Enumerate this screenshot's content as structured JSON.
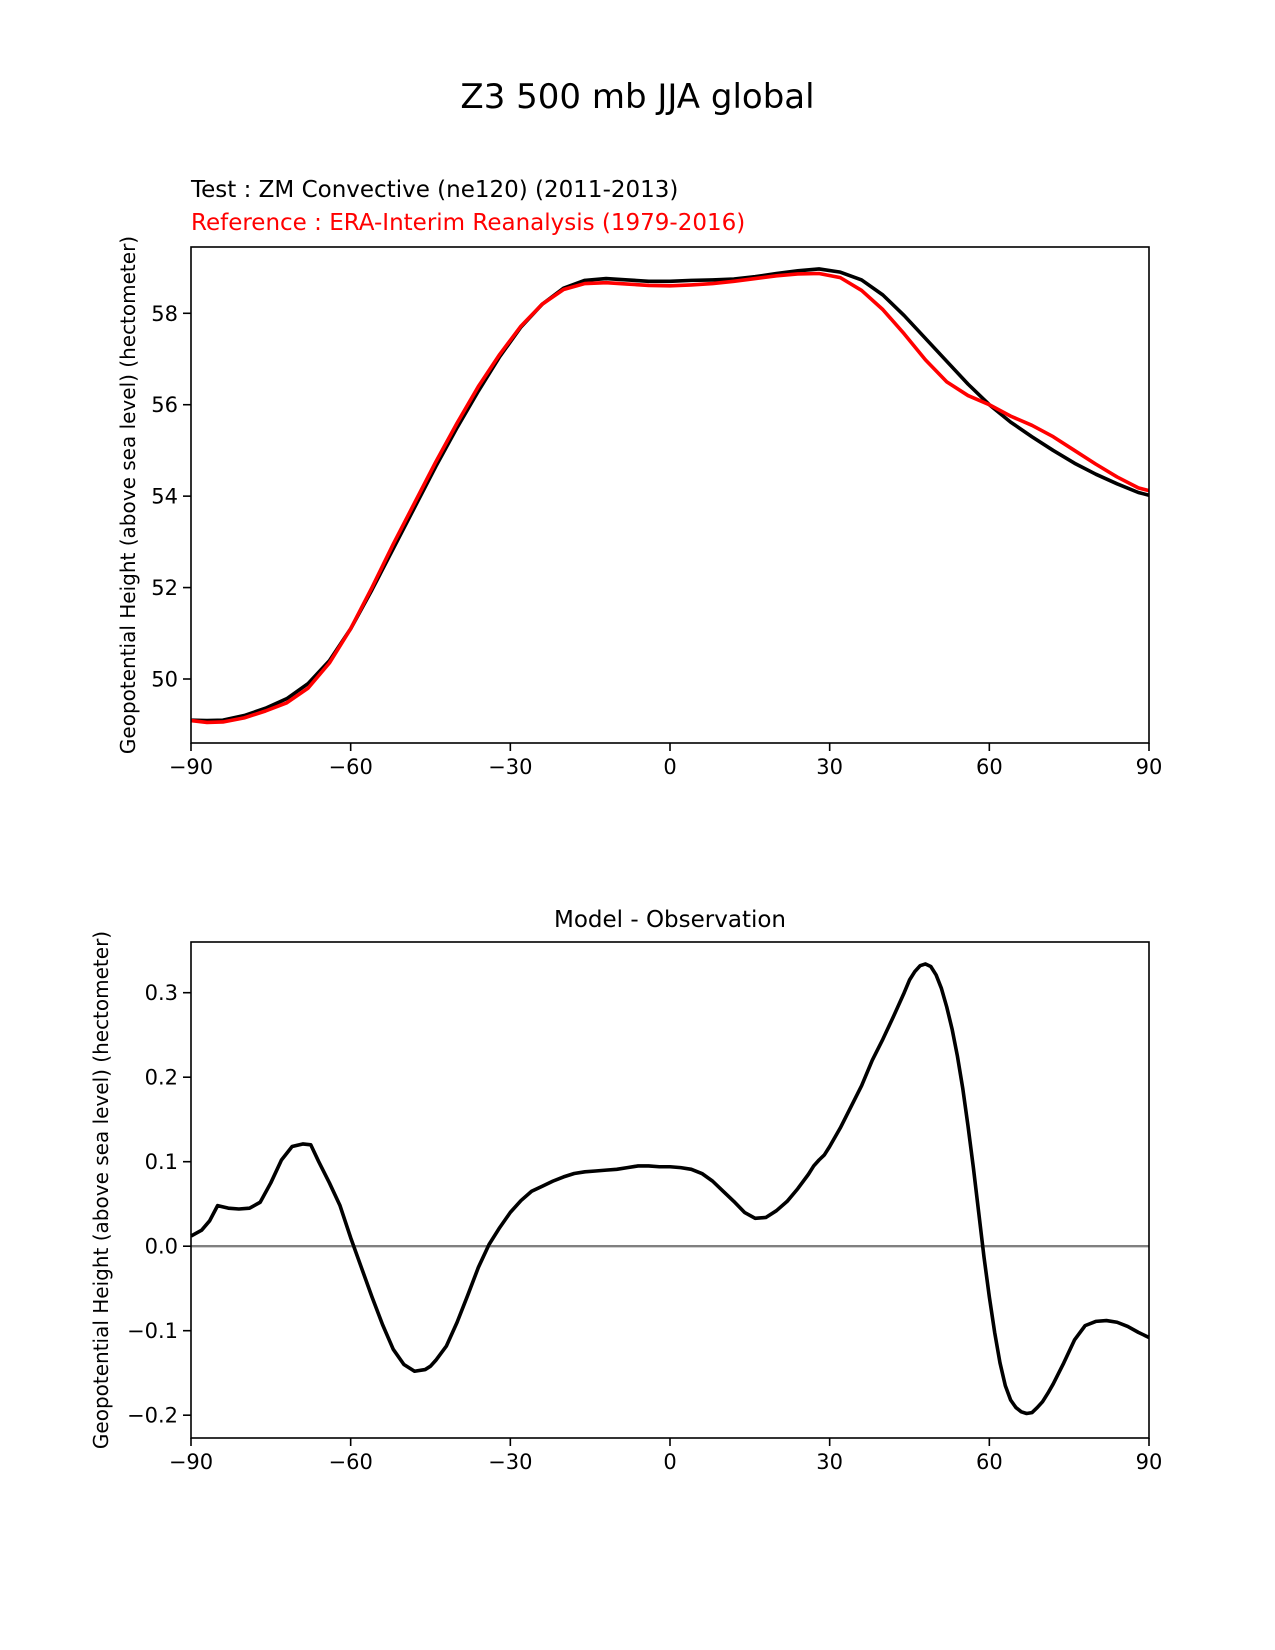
{
  "suptitle": "Z3 500 mb JJA global",
  "chart_data": [
    {
      "type": "line",
      "title_left": "Test : ZM Convective (ne120) (2011-2013)",
      "title_left_2": "Reference : ERA-Interim Reanalysis (1979-2016)",
      "title_left_2_color": "#ff0000",
      "xlabel": "",
      "ylabel": "Geopotential Height (above sea level) (hectometer)",
      "xlim": [
        -90,
        90
      ],
      "ylim": [
        48.6,
        59.45
      ],
      "xticks": [
        -90,
        -60,
        -30,
        0,
        30,
        60,
        90
      ],
      "xtick_labels": [
        "−90",
        "−60",
        "−30",
        "0",
        "30",
        "60",
        "90"
      ],
      "yticks": [
        50,
        52,
        54,
        56,
        58
      ],
      "ytick_labels": [
        "50",
        "52",
        "54",
        "56",
        "58"
      ],
      "grid": false,
      "series": [
        {
          "role": "test",
          "color": "#000000",
          "x": [
            -90,
            -87,
            -84,
            -80,
            -76,
            -72,
            -68,
            -64,
            -60,
            -56,
            -52,
            -48,
            -44,
            -40,
            -36,
            -32,
            -28,
            -24,
            -20,
            -16,
            -12,
            -8,
            -4,
            0,
            4,
            8,
            12,
            16,
            20,
            24,
            28,
            32,
            36,
            40,
            44,
            48,
            52,
            56,
            60,
            64,
            68,
            72,
            76,
            80,
            84,
            88,
            90
          ],
          "y": [
            49.1,
            49.09,
            49.1,
            49.2,
            49.36,
            49.57,
            49.9,
            50.4,
            51.1,
            51.95,
            52.85,
            53.75,
            54.65,
            55.5,
            56.3,
            57.05,
            57.7,
            58.2,
            58.55,
            58.72,
            58.76,
            58.73,
            58.7,
            58.7,
            58.72,
            58.73,
            58.75,
            58.8,
            58.87,
            58.93,
            58.97,
            58.9,
            58.73,
            58.4,
            57.95,
            57.45,
            56.95,
            56.45,
            56.0,
            55.62,
            55.3,
            55.0,
            54.72,
            54.48,
            54.27,
            54.08,
            54.02
          ]
        },
        {
          "role": "reference",
          "color": "#ff0000",
          "x": [
            -90,
            -87,
            -84,
            -80,
            -76,
            -72,
            -68,
            -64,
            -60,
            -56,
            -52,
            -48,
            -44,
            -40,
            -36,
            -32,
            -28,
            -24,
            -20,
            -16,
            -12,
            -8,
            -4,
            0,
            4,
            8,
            12,
            16,
            20,
            24,
            28,
            32,
            36,
            40,
            44,
            48,
            52,
            56,
            60,
            64,
            68,
            72,
            76,
            80,
            84,
            88,
            90
          ],
          "y": [
            49.09,
            49.05,
            49.06,
            49.15,
            49.3,
            49.48,
            49.8,
            50.35,
            51.1,
            52.0,
            52.95,
            53.85,
            54.75,
            55.6,
            56.4,
            57.1,
            57.72,
            58.2,
            58.52,
            58.65,
            58.67,
            58.64,
            58.61,
            58.6,
            58.62,
            58.65,
            58.7,
            58.76,
            58.82,
            58.86,
            58.87,
            58.78,
            58.5,
            58.08,
            57.55,
            56.98,
            56.5,
            56.2,
            56.0,
            55.75,
            55.55,
            55.3,
            55.0,
            54.7,
            54.42,
            54.18,
            54.12
          ]
        }
      ]
    },
    {
      "type": "line",
      "title": "Model - Observation",
      "xlabel": "",
      "ylabel": "Geopotential Height (above sea level) (hectometer)",
      "xlim": [
        -90,
        90
      ],
      "ylim": [
        -0.227,
        0.36
      ],
      "xticks": [
        -90,
        -60,
        -30,
        0,
        30,
        60,
        90
      ],
      "xtick_labels": [
        "−90",
        "−60",
        "−30",
        "0",
        "30",
        "60",
        "90"
      ],
      "yticks": [
        -0.2,
        -0.1,
        0.0,
        0.1,
        0.2,
        0.3
      ],
      "ytick_labels": [
        "−0.2",
        "−0.1",
        "0.0",
        "0.1",
        "0.2",
        "0.3"
      ],
      "grid": false,
      "zero_line_color": "#808080",
      "series": [
        {
          "role": "difference",
          "color": "#000000",
          "x": [
            -90,
            -88,
            -86.5,
            -85,
            -83,
            -81,
            -79,
            -77,
            -75,
            -73,
            -71,
            -69,
            -67.5,
            -66,
            -64,
            -62,
            -60,
            -58,
            -56,
            -54,
            -52,
            -50,
            -48,
            -46,
            -45,
            -44,
            -42,
            -40,
            -38,
            -36,
            -34,
            -32,
            -30,
            -28,
            -26,
            -24,
            -22,
            -20,
            -18,
            -16,
            -14,
            -12,
            -10,
            -8,
            -6,
            -4,
            -2,
            0,
            2,
            4,
            6,
            8,
            10,
            12,
            14,
            16,
            18,
            20,
            22,
            24,
            26,
            27,
            28,
            29,
            30,
            32,
            34,
            36,
            38,
            40,
            42,
            44,
            45,
            46,
            47,
            48,
            49,
            50,
            51,
            52,
            53,
            54,
            55,
            56,
            57,
            58,
            59,
            60,
            61,
            62,
            63,
            64,
            65,
            66,
            67,
            68,
            69,
            70,
            71,
            72,
            74,
            76,
            78,
            80,
            82,
            84,
            86,
            88,
            90
          ],
          "y": [
            0.012,
            0.019,
            0.03,
            0.048,
            0.045,
            0.044,
            0.045,
            0.052,
            0.075,
            0.102,
            0.118,
            0.121,
            0.12,
            0.1,
            0.075,
            0.048,
            0.01,
            -0.025,
            -0.06,
            -0.093,
            -0.122,
            -0.14,
            -0.148,
            -0.146,
            -0.142,
            -0.135,
            -0.118,
            -0.09,
            -0.058,
            -0.025,
            0.002,
            0.022,
            0.04,
            0.054,
            0.065,
            0.071,
            0.077,
            0.082,
            0.086,
            0.088,
            0.089,
            0.09,
            0.091,
            0.093,
            0.095,
            0.095,
            0.094,
            0.094,
            0.093,
            0.091,
            0.086,
            0.077,
            0.065,
            0.053,
            0.04,
            0.033,
            0.034,
            0.042,
            0.053,
            0.068,
            0.085,
            0.095,
            0.102,
            0.108,
            0.118,
            0.14,
            0.165,
            0.19,
            0.22,
            0.245,
            0.272,
            0.3,
            0.315,
            0.325,
            0.332,
            0.334,
            0.331,
            0.321,
            0.305,
            0.283,
            0.257,
            0.225,
            0.187,
            0.142,
            0.093,
            0.04,
            -0.013,
            -0.06,
            -0.102,
            -0.138,
            -0.165,
            -0.182,
            -0.191,
            -0.196,
            -0.198,
            -0.197,
            -0.191,
            -0.184,
            -0.174,
            -0.163,
            -0.138,
            -0.111,
            -0.094,
            -0.089,
            -0.088,
            -0.09,
            -0.095,
            -0.102,
            -0.108
          ]
        }
      ]
    }
  ]
}
